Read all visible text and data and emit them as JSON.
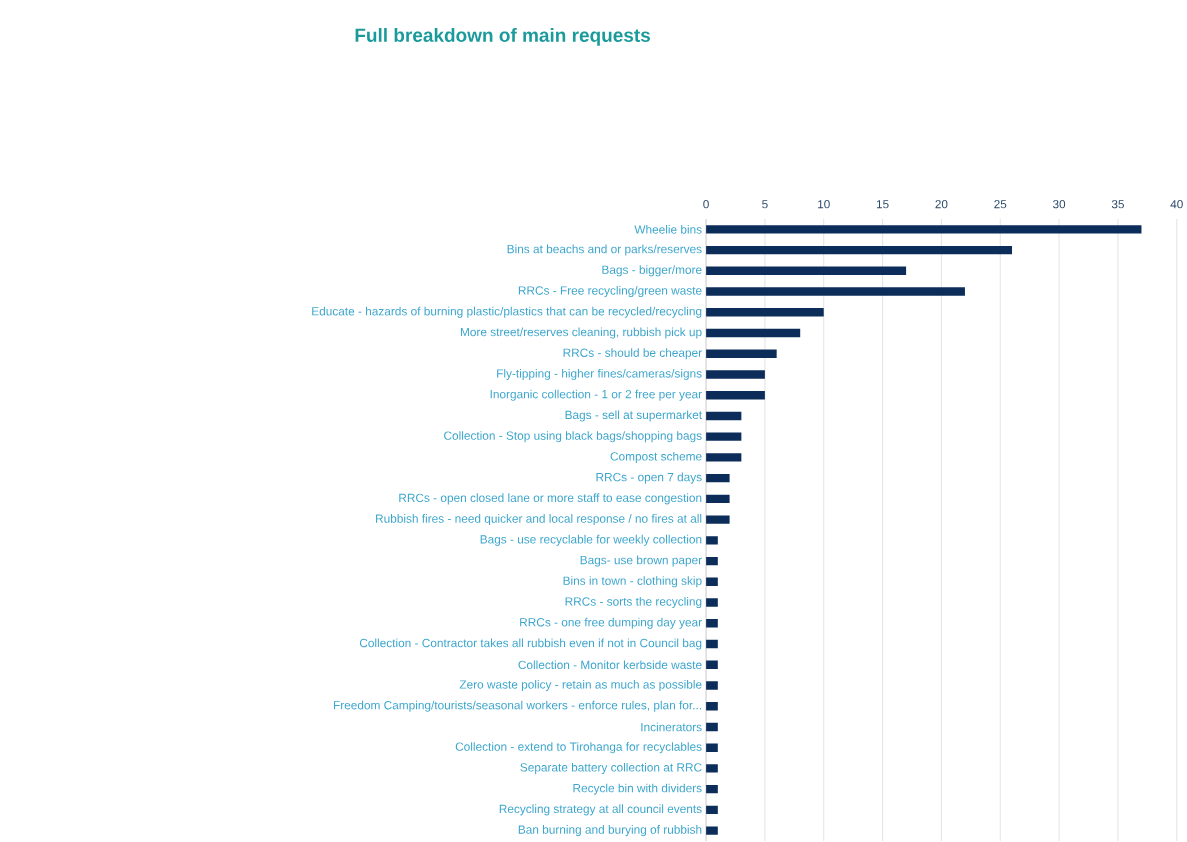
{
  "chart_data": {
    "type": "bar",
    "orientation": "horizontal",
    "title": "Full breakdown of main requests",
    "categories": [
      "Wheelie bins",
      "Bins at beachs and or parks/reserves",
      "Bags - bigger/more",
      "RRCs - Free recycling/green waste",
      "Educate - hazards of burning plastic/plastics that can be recycled/recycling",
      "More street/reserves cleaning, rubbish pick up",
      "RRCs - should be cheaper",
      "Fly-tipping - higher fines/cameras/signs",
      "Inorganic collection - 1 or 2 free per year",
      "Bags - sell at supermarket",
      "Collection - Stop using black bags/shopping bags",
      "Compost scheme",
      "RRCs - open 7 days",
      "RRCs - open closed lane or more staff to ease congestion",
      "Rubbish fires - need quicker and local response / no fires at all",
      "Bags - use recyclable for weekly collection",
      "Bags- use brown paper",
      "Bins in town - clothing skip",
      "RRCs - sorts the recycling",
      "RRCs - one free dumping day year",
      "Collection - Contractor takes all rubbish even if not in Council bag",
      "Collection - Monitor kerbside waste",
      "Zero waste policy - retain as much as possible",
      "Freedom Camping/tourists/seasonal workers - enforce rules, plan for...",
      "Incinerators",
      "Collection - extend to Tirohanga for recyclables",
      "Separate battery collection at RRC",
      "Recycle bin with dividers",
      "Recycling strategy at all council events",
      "Ban burning and burying of rubbish"
    ],
    "values": [
      37,
      26,
      17,
      22,
      10,
      8,
      6,
      5,
      5,
      3,
      3,
      3,
      2,
      2,
      2,
      1,
      1,
      1,
      1,
      1,
      1,
      1,
      1,
      1,
      1,
      1,
      1,
      1,
      1,
      1
    ],
    "color": "#0c2d5a",
    "xlim": [
      0,
      40
    ],
    "xticks": [
      0,
      5,
      10,
      15,
      20,
      25,
      30,
      35,
      40
    ],
    "grid": "x"
  }
}
